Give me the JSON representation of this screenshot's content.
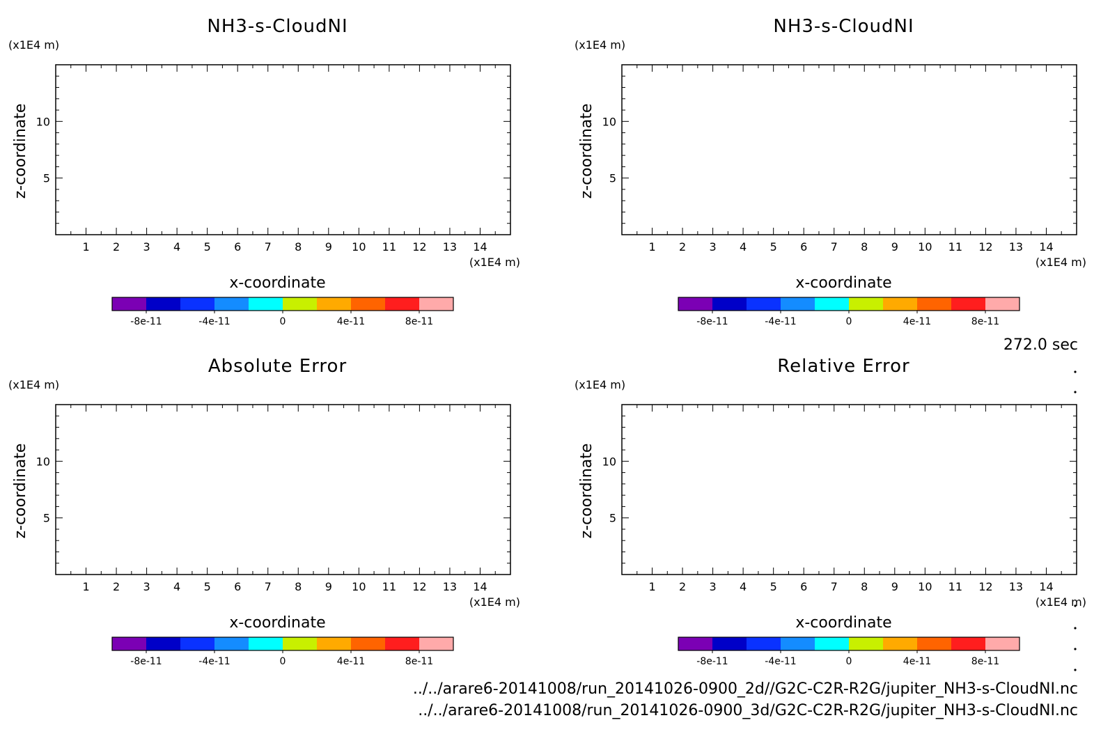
{
  "colors": [
    "#7b00b4",
    "#0000c8",
    "#0a32ff",
    "#148cff",
    "#00ffff",
    "#c8f000",
    "#ffaa00",
    "#ff6400",
    "#ff1e1e",
    "#ffaaaa"
  ],
  "time_label": "272.0 sec",
  "files": [
    "../../arare6-20141008/run_20141026-0900_2d//G2C-C2R-R2G/jupiter_NH3-s-CloudNI.nc",
    "../../arare6-20141008/run_20141026-0900_3d/G2C-C2R-R2G/jupiter_NH3-s-CloudNI.nc"
  ],
  "chart_data": [
    {
      "type": "heatmap",
      "title": "NH3-s-CloudNI",
      "xlabel": "x-coordinate",
      "ylabel": "z-coordinate",
      "x_unit": "(x1E4 m)",
      "y_unit": "(x1E4 m)",
      "xlim": [
        0,
        15
      ],
      "ylim": [
        0,
        15
      ],
      "xticks": [
        1,
        2,
        3,
        4,
        5,
        6,
        7,
        8,
        9,
        10,
        11,
        12,
        13,
        14
      ],
      "yticks": [
        5,
        10
      ],
      "values": [],
      "colorbar": {
        "range": [
          -1e-10,
          1e-10
        ],
        "ticks": [
          -8e-11,
          -4e-11,
          0,
          4e-11,
          8e-11
        ],
        "tick_labels": [
          "-8e-11",
          "-4e-11",
          "0",
          "4e-11",
          "8e-11"
        ]
      }
    },
    {
      "type": "heatmap",
      "title": "NH3-s-CloudNI",
      "xlabel": "x-coordinate",
      "ylabel": "z-coordinate",
      "x_unit": "(x1E4 m)",
      "y_unit": "(x1E4 m)",
      "xlim": [
        0,
        15
      ],
      "ylim": [
        0,
        15
      ],
      "xticks": [
        1,
        2,
        3,
        4,
        5,
        6,
        7,
        8,
        9,
        10,
        11,
        12,
        13,
        14
      ],
      "yticks": [
        5,
        10
      ],
      "values": [],
      "colorbar": {
        "range": [
          -1e-10,
          1e-10
        ],
        "ticks": [
          -8e-11,
          -4e-11,
          0,
          4e-11,
          8e-11
        ],
        "tick_labels": [
          "-8e-11",
          "-4e-11",
          "0",
          "4e-11",
          "8e-11"
        ]
      }
    },
    {
      "type": "heatmap",
      "title": "Absolute Error",
      "xlabel": "x-coordinate",
      "ylabel": "z-coordinate",
      "x_unit": "(x1E4 m)",
      "y_unit": "(x1E4 m)",
      "xlim": [
        0,
        15
      ],
      "ylim": [
        0,
        15
      ],
      "xticks": [
        1,
        2,
        3,
        4,
        5,
        6,
        7,
        8,
        9,
        10,
        11,
        12,
        13,
        14
      ],
      "yticks": [
        5,
        10
      ],
      "values": [],
      "colorbar": {
        "range": [
          -1e-10,
          1e-10
        ],
        "ticks": [
          -8e-11,
          -4e-11,
          0,
          4e-11,
          8e-11
        ],
        "tick_labels": [
          "-8e-11",
          "-4e-11",
          "0",
          "4e-11",
          "8e-11"
        ]
      }
    },
    {
      "type": "heatmap",
      "title": "Relative Error",
      "xlabel": "x-coordinate",
      "ylabel": "z-coordinate",
      "x_unit": "(x1E4 m)",
      "y_unit": "(x1E4 m)",
      "xlim": [
        0,
        15
      ],
      "ylim": [
        0,
        15
      ],
      "xticks": [
        1,
        2,
        3,
        4,
        5,
        6,
        7,
        8,
        9,
        10,
        11,
        12,
        13,
        14
      ],
      "yticks": [
        5,
        10
      ],
      "values": [],
      "colorbar": {
        "range": [
          -1e-10,
          1e-10
        ],
        "ticks": [
          -8e-11,
          -4e-11,
          0,
          4e-11,
          8e-11
        ],
        "tick_labels": [
          "-8e-11",
          "-4e-11",
          "0",
          "4e-11",
          "8e-11"
        ]
      }
    }
  ]
}
